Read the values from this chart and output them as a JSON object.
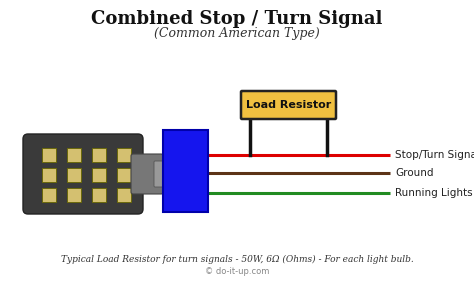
{
  "title": "Combined Stop / Turn Signal",
  "subtitle": "(Common American Type)",
  "footnote": "Typical Load Resistor for turn signals - 50W, 6Ω (Ohms) - For each light bulb.",
  "copyright": "© do-it-up.com",
  "bg_color": "#ffffff",
  "title_color": "#111111",
  "subtitle_color": "#333333",
  "wire_red_color": "#dd0000",
  "wire_brown_color": "#5C3317",
  "wire_green_color": "#228B22",
  "resistor_box_fill": "#F0C040",
  "resistor_box_edge": "#222222",
  "resistor_text": "Load Resistor",
  "connector_fill": "#1515ee",
  "connector_edge": "#0000aa",
  "loop_color": "#111111",
  "label_stop": "Stop/Turn Signal",
  "label_ground": "Ground",
  "label_running": "Running Lights",
  "wire_lw": 2.2,
  "loop_lw": 2.5
}
